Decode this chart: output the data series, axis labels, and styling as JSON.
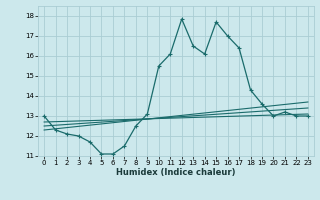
{
  "xlabel": "Humidex (Indice chaleur)",
  "xlim": [
    -0.5,
    23.5
  ],
  "ylim": [
    11,
    18.5
  ],
  "yticks": [
    11,
    12,
    13,
    14,
    15,
    16,
    17,
    18
  ],
  "xticks": [
    0,
    1,
    2,
    3,
    4,
    5,
    6,
    7,
    8,
    9,
    10,
    11,
    12,
    13,
    14,
    15,
    16,
    17,
    18,
    19,
    20,
    21,
    22,
    23
  ],
  "bg_color": "#cce8ec",
  "grid_color": "#aacdd4",
  "line_color": "#1a6b6b",
  "main_series_x": [
    0,
    1,
    2,
    3,
    4,
    5,
    6,
    7,
    8,
    9,
    10,
    11,
    12,
    13,
    14,
    15,
    16,
    17,
    18,
    19,
    20,
    21,
    22,
    23
  ],
  "main_series_y": [
    13.0,
    12.3,
    12.1,
    12.0,
    11.7,
    11.1,
    11.1,
    11.5,
    12.5,
    13.1,
    15.5,
    16.1,
    17.85,
    16.5,
    16.1,
    17.7,
    17.0,
    16.4,
    14.3,
    13.6,
    13.0,
    13.2,
    13.0,
    13.0
  ],
  "trend1_x": [
    0,
    23
  ],
  "trend1_y": [
    12.7,
    13.1
  ],
  "trend2_x": [
    0,
    23
  ],
  "trend2_y": [
    12.5,
    13.4
  ],
  "trend3_x": [
    0,
    23
  ],
  "trend3_y": [
    12.3,
    13.7
  ]
}
